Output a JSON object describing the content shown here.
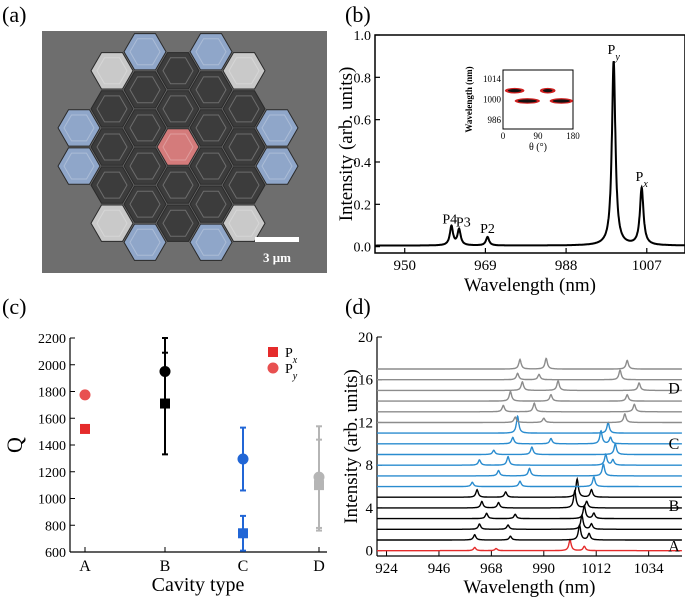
{
  "panels": {
    "a": {
      "label": "(a)",
      "scalebar": "3 μm"
    },
    "b": {
      "label": "(b)"
    },
    "c": {
      "label": "(c)"
    },
    "d": {
      "label": "(d)"
    }
  },
  "colors": {
    "red": "#e52b2b",
    "blue": "#2166d6",
    "black": "#000000",
    "gray": "#b5b5b5",
    "spec_gray": "#8c8c8c",
    "spec_blue": "#2a8ccf",
    "sem_bg": "#6e6e6e"
  },
  "chart_data": [
    {
      "id": "panel-b",
      "type": "line",
      "xlabel": "Wavelength (nm)",
      "ylabel": "Intensity (arb. units)",
      "xlim": [
        943,
        1016
      ],
      "ylim": [
        -0.03,
        1.0
      ],
      "xticks": [
        950,
        969,
        988,
        1007
      ],
      "yticks": [
        0.0,
        0.2,
        0.4,
        0.6,
        0.8,
        1.0
      ],
      "ytick_labels": [
        "0.0",
        "0.2",
        "0.4",
        "0.6",
        "0.8",
        "1.0"
      ],
      "peaks": [
        {
          "label": "P4",
          "x": 961.0,
          "h": 0.09,
          "w": 0.45
        },
        {
          "label": "P3",
          "x": 962.8,
          "h": 0.075,
          "w": 0.45
        },
        {
          "label": "P2",
          "x": 969.5,
          "h": 0.04,
          "w": 0.45
        },
        {
          "label": "Py",
          "x": 999.2,
          "h": 0.87,
          "w": 0.5
        },
        {
          "label": "Px",
          "x": 1005.8,
          "h": 0.27,
          "w": 0.5
        }
      ],
      "peak_labels": [
        {
          "text": "P4",
          "x": 960.6,
          "y": 0.1
        },
        {
          "text": "P3",
          "x": 963.8,
          "y": 0.085
        },
        {
          "text": "P2",
          "x": 969.5,
          "y": 0.055
        },
        {
          "text": "P",
          "sub": "y",
          "x": 999.2,
          "y": 0.9
        },
        {
          "text": "P",
          "sub": "x",
          "x": 1005.8,
          "y": 0.3
        }
      ],
      "baseline": 0.005,
      "inset": {
        "type": "scatter",
        "xlabel": "θ (°)",
        "ylabel": "Wavelength (nm)",
        "xlim": [
          0,
          180
        ],
        "ylim": [
          980,
          1020
        ],
        "xticks": [
          0,
          90,
          180
        ],
        "yticks": [
          986,
          1000,
          1014
        ],
        "bands": [
          {
            "x_start": 5,
            "x_end": 55,
            "y": 1006
          },
          {
            "x_start": 30,
            "x_end": 95,
            "y": 999
          },
          {
            "x_start": 95,
            "x_end": 135,
            "y": 1006
          },
          {
            "x_start": 120,
            "x_end": 180,
            "y": 999
          }
        ]
      }
    },
    {
      "id": "panel-c",
      "type": "scatter",
      "xlabel": "Cavity type",
      "ylabel": "Q",
      "categories": [
        "A",
        "B",
        "C",
        "D"
      ],
      "ylim": [
        600,
        2200
      ],
      "yticks": [
        600,
        800,
        1000,
        1200,
        1400,
        1600,
        1800,
        2000,
        2200
      ],
      "legend": [
        {
          "label": "P",
          "sub": "x",
          "marker": "square",
          "color": "#e52b2b"
        },
        {
          "label": "P",
          "sub": "y",
          "marker": "circle",
          "color": "#e85050"
        }
      ],
      "points": [
        {
          "category": "A",
          "series": "Px",
          "value": 1520,
          "color": "#e52b2b",
          "marker": "square"
        },
        {
          "category": "A",
          "series": "Py",
          "value": 1775,
          "color": "#e85050",
          "marker": "circle"
        },
        {
          "category": "B",
          "series": "Px",
          "value": 1710,
          "err": 380,
          "color": "#000000",
          "marker": "square"
        },
        {
          "category": "B",
          "series": "Py",
          "value": 1950,
          "err": 260,
          "color": "#000000",
          "marker": "circle"
        },
        {
          "category": "C",
          "series": "Px",
          "value": 740,
          "err": 130,
          "color": "#2166d6",
          "marker": "square"
        },
        {
          "category": "C",
          "series": "Py",
          "value": 1295,
          "err": 235,
          "color": "#2166d6",
          "marker": "circle"
        },
        {
          "category": "D",
          "series": "Px",
          "value": 1100,
          "err": 340,
          "color": "#b5b5b5",
          "marker": "square"
        },
        {
          "category": "D",
          "series": "Py",
          "value": 1160,
          "err": 380,
          "color": "#b5b5b5",
          "marker": "circle"
        }
      ]
    },
    {
      "id": "panel-d",
      "type": "line",
      "xlabel": "Wavelength (nm)",
      "ylabel": "Intensity (arb. units)",
      "xlim": [
        920,
        1048
      ],
      "ylim": [
        -0.5,
        20
      ],
      "xticks": [
        924,
        946,
        968,
        990,
        1012,
        1034
      ],
      "yticks": [
        0,
        4,
        8,
        12,
        16,
        20
      ],
      "group_labels": [
        {
          "text": "A",
          "y": 0.4,
          "color": "#e52b2b"
        },
        {
          "text": "B",
          "y": 4.2,
          "color": "#000000"
        },
        {
          "text": "C",
          "y": 10.0,
          "color": "#2a8ccf"
        },
        {
          "text": "D",
          "y": 15.2,
          "color": "#8c8c8c"
        }
      ],
      "spectra": [
        {
          "group": "A",
          "offset": 0.0,
          "color": "#e52b2b",
          "peaks": [
            [
              961,
              0.3
            ],
            [
              970,
              0.2
            ],
            [
              1001,
              1.0
            ],
            [
              1007,
              0.4
            ]
          ]
        },
        {
          "group": "B",
          "offset": 1.0,
          "color": "#000000",
          "peaks": [
            [
              961,
              0.5
            ],
            [
              976,
              0.35
            ],
            [
              1005,
              1.4
            ],
            [
              1009,
              0.6
            ]
          ]
        },
        {
          "group": "B",
          "offset": 2.0,
          "color": "#000000",
          "peaks": [
            [
              963,
              0.5
            ],
            [
              975,
              0.4
            ],
            [
              1006,
              1.3
            ],
            [
              1010,
              0.5
            ]
          ]
        },
        {
          "group": "B",
          "offset": 3.0,
          "color": "#000000",
          "peaks": [
            [
              966,
              0.5
            ],
            [
              978,
              0.4
            ],
            [
              1007,
              1.2
            ],
            [
              1011,
              0.5
            ]
          ]
        },
        {
          "group": "B",
          "offset": 4.0,
          "color": "#000000",
          "peaks": [
            [
              964,
              0.6
            ],
            [
              971,
              0.5
            ],
            [
              1003,
              1.6
            ],
            [
              1008,
              0.6
            ]
          ]
        },
        {
          "group": "B",
          "offset": 5.0,
          "color": "#000000",
          "peaks": [
            [
              962,
              0.7
            ],
            [
              974,
              0.5
            ],
            [
              1004,
              1.7
            ],
            [
              1010,
              0.7
            ]
          ]
        },
        {
          "group": "C",
          "offset": 6.0,
          "color": "#2a8ccf",
          "peaks": [
            [
              960,
              0.4
            ],
            [
              980,
              0.5
            ],
            [
              1011,
              0.9
            ]
          ]
        },
        {
          "group": "C",
          "offset": 7.0,
          "color": "#2a8ccf",
          "peaks": [
            [
              971,
              0.5
            ],
            [
              984,
              0.7
            ],
            [
              1015,
              1.1
            ]
          ]
        },
        {
          "group": "C",
          "offset": 8.0,
          "color": "#2a8ccf",
          "peaks": [
            [
              963,
              0.5
            ],
            [
              975,
              0.8
            ],
            [
              1016,
              1.0
            ],
            [
              1019,
              0.5
            ]
          ]
        },
        {
          "group": "C",
          "offset": 9.0,
          "color": "#2a8ccf",
          "peaks": [
            [
              969,
              0.4
            ],
            [
              985,
              0.7
            ],
            [
              1020,
              1.0
            ]
          ]
        },
        {
          "group": "C",
          "offset": 10.0,
          "color": "#2a8ccf",
          "peaks": [
            [
              977,
              0.6
            ],
            [
              993,
              0.5
            ],
            [
              1014,
              1.2
            ],
            [
              1018,
              0.6
            ]
          ]
        },
        {
          "group": "C",
          "offset": 11.0,
          "color": "#2a8ccf",
          "peaks": [
            [
              979,
              1.6
            ],
            [
              1017,
              1.0
            ]
          ]
        },
        {
          "group": "D",
          "offset": 12.0,
          "color": "#8c8c8c",
          "peaks": [
            [
              978,
              0.5
            ],
            [
              990,
              0.4
            ],
            [
              1024,
              0.8
            ]
          ]
        },
        {
          "group": "D",
          "offset": 13.0,
          "color": "#8c8c8c",
          "peaks": [
            [
              973,
              0.6
            ],
            [
              986,
              0.8
            ],
            [
              1028,
              0.7
            ]
          ]
        },
        {
          "group": "D",
          "offset": 14.0,
          "color": "#8c8c8c",
          "peaks": [
            [
              976,
              0.9
            ],
            [
              993,
              0.6
            ],
            [
              1025,
              0.6
            ]
          ]
        },
        {
          "group": "D",
          "offset": 15.0,
          "color": "#8c8c8c",
          "peaks": [
            [
              981,
              0.8
            ],
            [
              996,
              0.9
            ],
            [
              1030,
              0.7
            ]
          ]
        },
        {
          "group": "D",
          "offset": 16.0,
          "color": "#8c8c8c",
          "peaks": [
            [
              979,
              0.6
            ],
            [
              988,
              0.5
            ],
            [
              1022,
              0.9
            ]
          ]
        },
        {
          "group": "D",
          "offset": 17.0,
          "color": "#8c8c8c",
          "peaks": [
            [
              980,
              0.9
            ],
            [
              991,
              1.0
            ],
            [
              1025,
              0.8
            ]
          ]
        }
      ]
    }
  ]
}
